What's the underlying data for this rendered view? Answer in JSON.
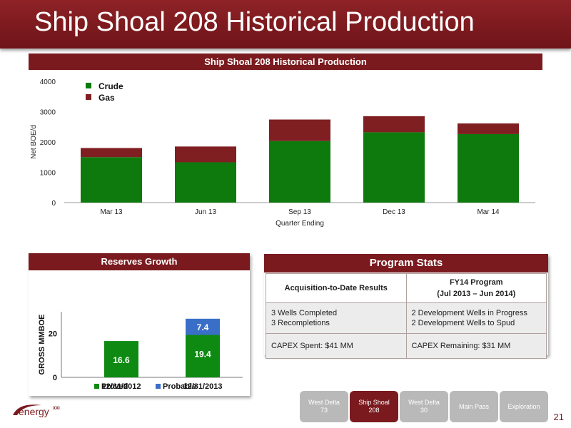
{
  "page": {
    "title": "Ship Shoal 208 Historical Production",
    "page_number": "21",
    "logo_text": "energy",
    "logo_sup": "XXI"
  },
  "colors": {
    "crude": "#0e7a0d",
    "gas": "#7f1f22",
    "proved": "#0e8a12",
    "probable": "#3a6fc8",
    "brand": "#7a1a1e"
  },
  "chart_data": [
    {
      "type": "bar",
      "title": "Ship Shoal 208 Historical Production",
      "xlabel": "Quarter Ending",
      "ylabel": "Net BOE/d",
      "categories": [
        "Mar 13",
        "Jun 13",
        "Sep 13",
        "Dec 13",
        "Mar 14"
      ],
      "series": [
        {
          "name": "Crude",
          "values": [
            1500,
            1330,
            2030,
            2320,
            2260
          ]
        },
        {
          "name": "Gas",
          "values": [
            300,
            520,
            710,
            530,
            350
          ]
        }
      ],
      "ylim": [
        0,
        4000
      ],
      "yticks": [
        "0",
        "1000",
        "2000",
        "3000",
        "4000"
      ],
      "stacked": true,
      "legend": "top-left"
    },
    {
      "type": "bar",
      "title": "Reserves Growth",
      "ylabel": "GROSS MMBOE",
      "categories": [
        "12/31/2012",
        "12/31/2013"
      ],
      "series": [
        {
          "name": "Proved",
          "values": [
            16.6,
            19.4
          ],
          "labels": [
            "16.6",
            "19.4"
          ]
        },
        {
          "name": "Probable",
          "values": [
            0,
            7.4
          ],
          "labels": [
            "",
            "7.4"
          ]
        }
      ],
      "ylim": [
        0,
        30
      ],
      "yticks": [
        "0",
        "20"
      ],
      "stacked": true,
      "legend": "bottom"
    }
  ],
  "program_stats": {
    "title": "Program Stats",
    "col1_header": "Acquisition-to-Date Results",
    "col2_header_line1": "FY14 Program",
    "col2_header_line2": "(Jul 2013 – Jun 2014)",
    "row1_col1_line1": "3 Wells Completed",
    "row1_col1_line2": "3 Recompletions",
    "row1_col2_line1": "2 Development Wells in Progress",
    "row1_col2_line2": "2 Development Wells to Spud",
    "row2_col1": "CAPEX Spent: $41 MM",
    "row2_col2": "CAPEX Remaining: $31 MM"
  },
  "nav": [
    {
      "line1": "West Delta",
      "line2": "73",
      "active": false
    },
    {
      "line1": "Ship Shoal",
      "line2": "208",
      "active": true
    },
    {
      "line1": "West Delta",
      "line2": "30",
      "active": false
    },
    {
      "line1": "Main Pass",
      "line2": "",
      "active": false
    },
    {
      "line1": "Exploration",
      "line2": "",
      "active": false
    }
  ]
}
